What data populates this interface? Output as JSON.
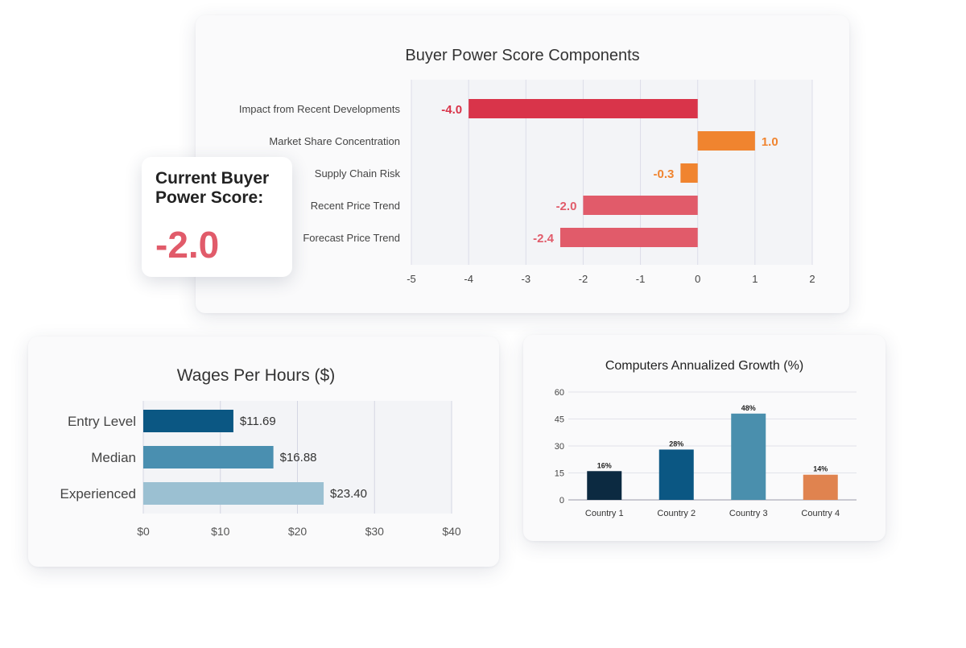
{
  "score_card": {
    "title": "Current Buyer Power Score:",
    "value": "-2.0"
  },
  "chart_data": [
    {
      "type": "bar",
      "orientation": "horizontal",
      "title": "Buyer Power Score Components",
      "categories": [
        "Impact from Recent Developments",
        "Market Share Concentration",
        "Supply Chain Risk",
        "Recent Price Trend",
        "Forecast Price Trend"
      ],
      "values": [
        -4.0,
        1.0,
        -0.3,
        -2.0,
        -2.4
      ],
      "value_labels": [
        "-4.0",
        "1.0",
        "-0.3",
        "-2.0",
        "-2.4"
      ],
      "colors": [
        "#d9344a",
        "#f0842f",
        "#f0842f",
        "#e15b6a",
        "#e15b6a"
      ],
      "label_colors": [
        "#d9344a",
        "#f0842f",
        "#f0842f",
        "#e15b6a",
        "#e15b6a"
      ],
      "xlim": [
        -5,
        2
      ],
      "xticks": [
        "-5",
        "-4",
        "-3",
        "-2",
        "-1",
        "0",
        "1",
        "2"
      ],
      "grid": true
    },
    {
      "type": "bar",
      "orientation": "horizontal",
      "title": "Wages Per Hours ($)",
      "categories": [
        "Entry Level",
        "Median",
        "Experienced"
      ],
      "values": [
        11.69,
        16.88,
        23.4
      ],
      "value_labels": [
        "$11.69",
        "$16.88",
        "$23.40"
      ],
      "colors": [
        "#0b5783",
        "#4a8fb0",
        "#9bc0d2"
      ],
      "xlim": [
        0,
        40
      ],
      "xticks": [
        "$0",
        "$10",
        "$20",
        "$30",
        "$40"
      ],
      "grid": true
    },
    {
      "type": "bar",
      "orientation": "vertical",
      "title": "Computers Annualized Growth (%)",
      "categories": [
        "Country 1",
        "Country 2",
        "Country 3",
        "Country 4"
      ],
      "values": [
        16,
        28,
        48,
        14
      ],
      "value_labels": [
        "16%",
        "28%",
        "48%",
        "14%"
      ],
      "colors": [
        "#0c2a41",
        "#0b5783",
        "#4a8fad",
        "#e0834f"
      ],
      "ylim": [
        0,
        60
      ],
      "yticks": [
        "0",
        "15",
        "30",
        "45",
        "60"
      ],
      "grid": true
    }
  ]
}
